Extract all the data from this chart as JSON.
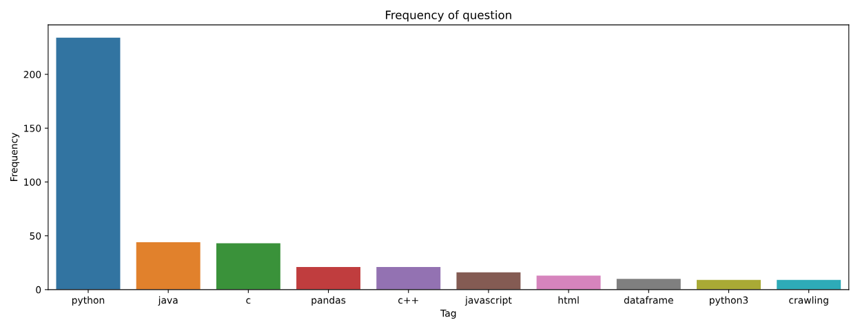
{
  "chart_data": {
    "type": "bar",
    "title": "Frequency of question",
    "xlabel": "Tag",
    "ylabel": "Frequency",
    "categories": [
      "python",
      "java",
      "c",
      "pandas",
      "c++",
      "javascript",
      "html",
      "dataframe",
      "python3",
      "crawling"
    ],
    "values": [
      234,
      44,
      43,
      21,
      21,
      16,
      13,
      10,
      9,
      9
    ],
    "colors": [
      "#3274a1",
      "#e1812c",
      "#3a923a",
      "#c03d3e",
      "#9372b2",
      "#845b53",
      "#d684bd",
      "#7f7f7f",
      "#a9aa35",
      "#2eabb8"
    ],
    "ylim": [
      0,
      246
    ],
    "yticks": [
      0,
      50,
      100,
      150,
      200
    ],
    "grid": false,
    "legend": false
  }
}
